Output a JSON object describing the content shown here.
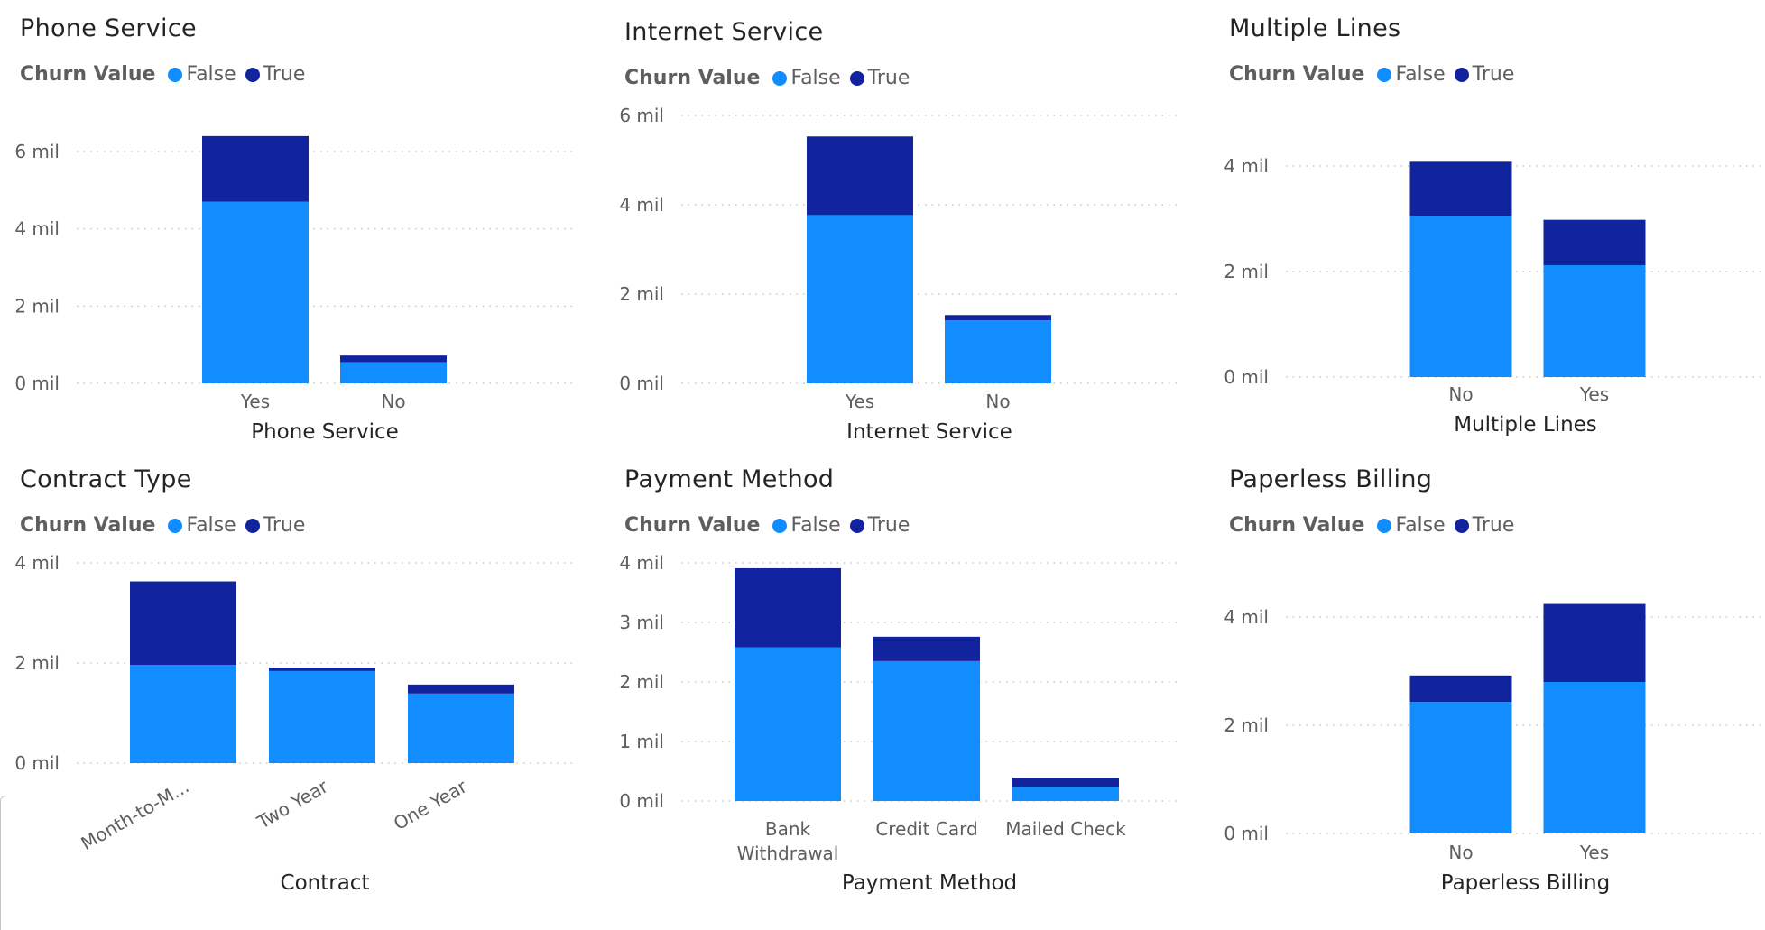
{
  "colors": {
    "false": "#118dff",
    "true": "#12239e",
    "text": "#605e5c",
    "title": "#252423",
    "grid": "#c8c6c4"
  },
  "legend_title": "Churn Value",
  "legend_items": [
    "False",
    "True"
  ],
  "chart_data": [
    {
      "type": "bar",
      "stacked": true,
      "title": "Phone Service",
      "xlabel": "Phone Service",
      "ylabel": "",
      "categories": [
        "Yes",
        "No"
      ],
      "series": [
        {
          "name": "False",
          "values": [
            4.7,
            0.55
          ]
        },
        {
          "name": "True",
          "values": [
            1.7,
            0.17
          ]
        }
      ],
      "ylim": [
        0,
        6
      ],
      "yticks": [
        0,
        2,
        4,
        6
      ],
      "ytick_labels": [
        "0 mil",
        "2 mil",
        "4 mil",
        "6 mil"
      ],
      "grid": true,
      "legend": "top-left"
    },
    {
      "type": "bar",
      "stacked": true,
      "title": "Internet Service",
      "xlabel": "Internet Service",
      "ylabel": "",
      "categories": [
        "Yes",
        "No"
      ],
      "series": [
        {
          "name": "False",
          "values": [
            3.77,
            1.41
          ]
        },
        {
          "name": "True",
          "values": [
            1.76,
            0.12
          ]
        }
      ],
      "ylim": [
        0,
        6
      ],
      "yticks": [
        0,
        2,
        4,
        6
      ],
      "ytick_labels": [
        "0 mil",
        "2 mil",
        "4 mil",
        "6 mil"
      ],
      "grid": true,
      "legend": "top-left"
    },
    {
      "type": "bar",
      "stacked": true,
      "title": "Multiple Lines",
      "xlabel": "Multiple Lines",
      "ylabel": "",
      "categories": [
        "No",
        "Yes"
      ],
      "series": [
        {
          "name": "False",
          "values": [
            3.05,
            2.12
          ]
        },
        {
          "name": "True",
          "values": [
            1.03,
            0.86
          ]
        }
      ],
      "ylim": [
        0,
        4
      ],
      "yticks": [
        0,
        2,
        4
      ],
      "ytick_labels": [
        "0 mil",
        "2 mil",
        "4 mil"
      ],
      "grid": true,
      "legend": "top-left"
    },
    {
      "type": "bar",
      "stacked": true,
      "title": "Contract Type",
      "xlabel": "Contract",
      "ylabel": "",
      "categories": [
        "Month-to-M...",
        "Two Year",
        "One Year"
      ],
      "series": [
        {
          "name": "False",
          "values": [
            1.96,
            1.84,
            1.39
          ]
        },
        {
          "name": "True",
          "values": [
            1.67,
            0.07,
            0.18
          ]
        }
      ],
      "ylim": [
        0,
        4
      ],
      "yticks": [
        0,
        2,
        4
      ],
      "ytick_labels": [
        "0 mil",
        "2 mil",
        "4 mil"
      ],
      "grid": true,
      "legend": "top-left"
    },
    {
      "type": "bar",
      "stacked": true,
      "title": "Payment Method",
      "xlabel": "Payment Method",
      "ylabel": "",
      "categories": [
        "Bank Withdrawal",
        "Credit Card",
        "Mailed Check"
      ],
      "series": [
        {
          "name": "False",
          "values": [
            2.58,
            2.35,
            0.24
          ]
        },
        {
          "name": "True",
          "values": [
            1.33,
            0.41,
            0.15
          ]
        }
      ],
      "ylim": [
        0,
        4
      ],
      "yticks": [
        0,
        1,
        2,
        3,
        4
      ],
      "ytick_labels": [
        "0 mil",
        "1 mil",
        "2 mil",
        "3 mil",
        "4 mil"
      ],
      "grid": true,
      "legend": "top-left"
    },
    {
      "type": "bar",
      "stacked": true,
      "title": "Paperless Billing",
      "xlabel": "Paperless Billing",
      "ylabel": "",
      "categories": [
        "No",
        "Yes"
      ],
      "series": [
        {
          "name": "False",
          "values": [
            2.43,
            2.8
          ]
        },
        {
          "name": "True",
          "values": [
            0.49,
            1.44
          ]
        }
      ],
      "ylim": [
        0,
        4
      ],
      "yticks": [
        0,
        2,
        4
      ],
      "ytick_labels": [
        "0 mil",
        "2 mil",
        "4 mil"
      ],
      "grid": true,
      "legend": "top-left"
    }
  ]
}
